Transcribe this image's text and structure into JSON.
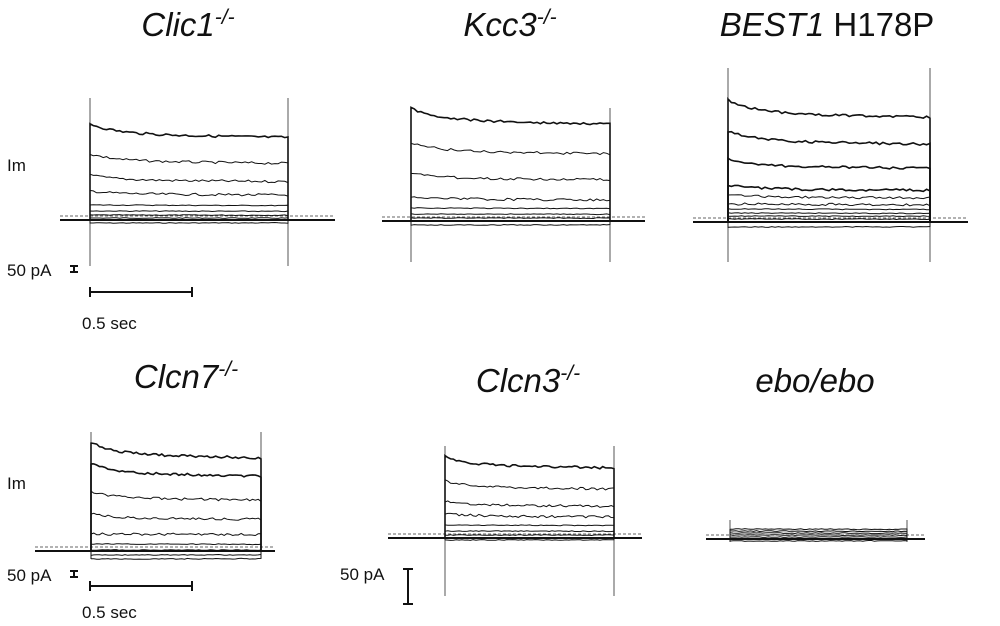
{
  "panels": [
    {
      "id": "clic1",
      "gene": "Clic1",
      "suffix": "-/-",
      "extra": "",
      "show_im": true,
      "im_label": "Im",
      "scale_current": "50 pA",
      "scale_time": "0.5 sec",
      "trace_levels": [
        -3,
        2,
        5,
        9,
        15,
        26,
        40,
        59,
        86
      ],
      "trace_count": 9
    },
    {
      "id": "kcc3",
      "gene": "Kcc3",
      "suffix": "-/-",
      "extra": "",
      "show_im": false,
      "trace_levels": [
        -4,
        3,
        7,
        13,
        22,
        43,
        70,
        101
      ],
      "trace_count": 8
    },
    {
      "id": "best1",
      "gene": "BEST1",
      "suffix": "",
      "extra": "H178P",
      "show_im": false,
      "trace_levels": [
        -5,
        0,
        3,
        6,
        9,
        13,
        18,
        25,
        33,
        56,
        81,
        109
      ],
      "trace_count": 12
    },
    {
      "id": "clcn7",
      "gene": "Clcn7",
      "suffix": "-/-",
      "extra": "",
      "show_im": true,
      "im_label": "Im",
      "scale_current": "50 pA",
      "scale_time": "0.5 sec",
      "trace_levels": [
        -8,
        -4,
        1,
        7,
        17,
        33,
        53,
        78,
        97
      ],
      "trace_count": 9
    },
    {
      "id": "clcn3",
      "gene": "Clcn3",
      "suffix": "-/-",
      "extra": "",
      "show_im": false,
      "scale_current": "50 pA",
      "trace_levels": [
        -2,
        3,
        7,
        13,
        22,
        33,
        51,
        73
      ],
      "trace_count": 8
    },
    {
      "id": "ebo",
      "gene": "ebo/ebo",
      "suffix": "",
      "extra": "",
      "show_im": false,
      "trace_levels": [
        -2,
        0,
        2,
        4,
        6,
        8,
        10
      ],
      "trace_count": 7
    }
  ],
  "colors": {
    "trace": "#111111",
    "frame": "#555555",
    "baseline": "#666666"
  }
}
